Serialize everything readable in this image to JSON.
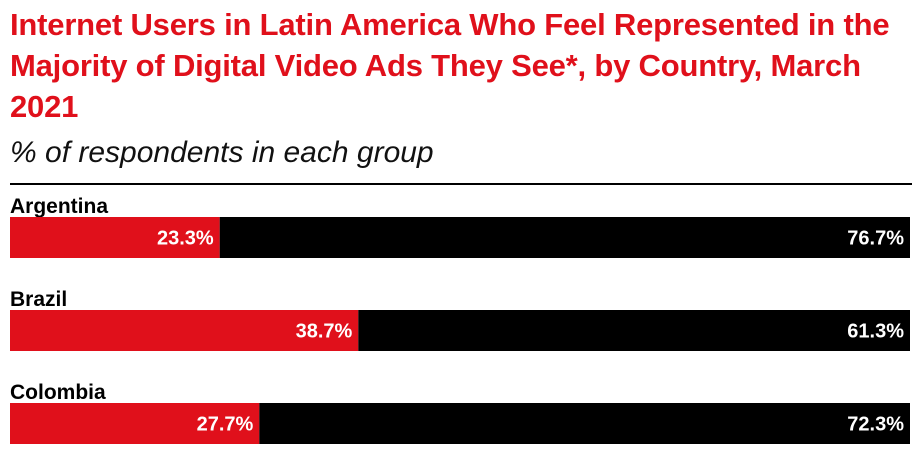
{
  "title": "Internet Users in Latin America Who Feel Represented in the Majority of Digital Video Ads They See*, by Country, March 2021",
  "subtitle": "% of respondents in each group",
  "colors": {
    "accent": "#e0101b",
    "dark": "#000000"
  },
  "chart_data": {
    "type": "bar",
    "orientation": "horizontal",
    "stacked": true,
    "categories": [
      "Argentina",
      "Brazil",
      "Colombia"
    ],
    "series": [
      {
        "values": [
          23.3,
          38.7,
          27.7
        ],
        "labels": [
          "23.3%",
          "38.7%",
          "27.7%"
        ],
        "color": "#e0101b"
      },
      {
        "values": [
          76.7,
          61.3,
          72.3
        ],
        "labels": [
          "76.7%",
          "61.3%",
          "72.3%"
        ],
        "color": "#000000"
      }
    ],
    "xlim": [
      0,
      100
    ],
    "grid": false,
    "legend": "none"
  }
}
